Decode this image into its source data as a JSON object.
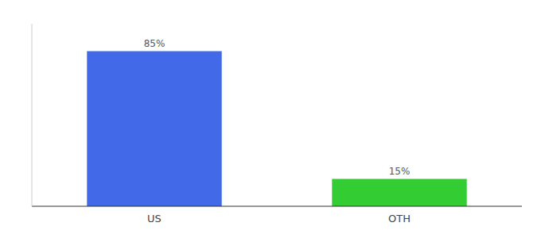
{
  "chart_data": {
    "type": "bar",
    "categories": [
      "US",
      "OTH"
    ],
    "values": [
      85,
      15
    ],
    "value_labels": [
      "85%",
      "15%"
    ],
    "colors": [
      "#4169E8",
      "#33CC33"
    ],
    "ylim": [
      0,
      100
    ],
    "data_labels": true,
    "tick_labels": "x",
    "grid": false
  }
}
